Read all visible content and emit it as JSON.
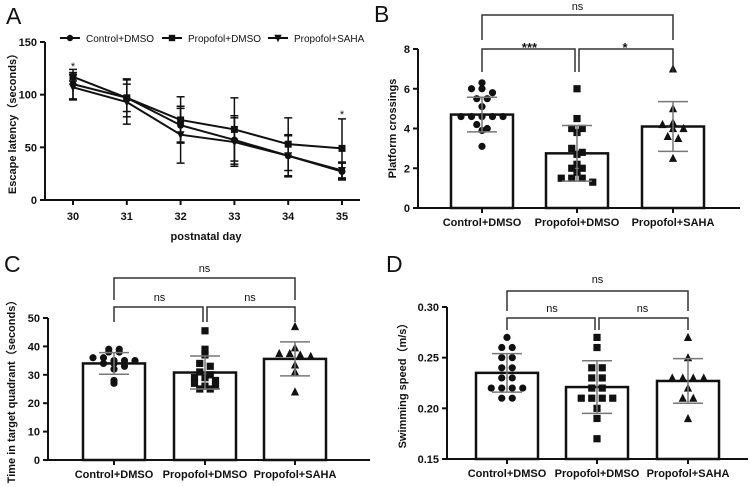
{
  "chart_data": [
    {
      "panel": "A",
      "type": "line",
      "xlabel": "postnatal day",
      "ylabel": "Escape latency（seconds）",
      "x": [
        30,
        31,
        32,
        33,
        34,
        35
      ],
      "xticks": [
        "30",
        "31",
        "32",
        "33",
        "34",
        "35"
      ],
      "ylim": [
        0,
        150
      ],
      "yticks": [
        "0",
        "50",
        "100",
        "150"
      ],
      "legend_position": "top",
      "series": [
        {
          "name": "Control+DMSO",
          "marker": "circle",
          "values": [
            110,
            97,
            71,
            57,
            42,
            27
          ],
          "errors": [
            14,
            18,
            16,
            23,
            19,
            8
          ]
        },
        {
          "name": "Propofol+DMSO",
          "marker": "square",
          "values": [
            117,
            97,
            76,
            67,
            53,
            49
          ],
          "errors": [
            4,
            13,
            22,
            30,
            25,
            28
          ]
        },
        {
          "name": "Propofol+SAHA",
          "marker": "triangle-down",
          "values": [
            107,
            93,
            62,
            55,
            42,
            28
          ],
          "errors": [
            12,
            21,
            27,
            23,
            20,
            8
          ]
        }
      ],
      "annotations": [
        {
          "x": 30,
          "text": "*"
        },
        {
          "x": 35,
          "text": "*"
        }
      ]
    },
    {
      "panel": "B",
      "type": "bar",
      "ylabel": "Platform crossings",
      "categories": [
        "Control+DMSO",
        "Propofol+DMSO",
        "Propofol+SAHA"
      ],
      "ylim": [
        0,
        8
      ],
      "yticks": [
        "0",
        "2",
        "4",
        "6",
        "8"
      ],
      "values": [
        4.7,
        2.75,
        4.1
      ],
      "errors": [
        0.87,
        1.4,
        1.25
      ],
      "markers": [
        "circle",
        "square",
        "triangle"
      ],
      "points": [
        [
          6.3,
          6.0,
          6.0,
          5.8,
          5.5,
          5.5,
          5.1,
          4.6,
          4.6,
          4.6,
          4.6,
          4.6,
          4.2,
          4.0,
          3.9,
          3.1
        ],
        [
          6.0,
          4.5,
          4.0,
          4.0,
          3.8,
          3.0,
          2.8,
          2.7,
          2.2,
          2.0,
          2.0,
          1.8,
          1.5,
          1.5,
          1.5,
          1.3
        ],
        [
          7.0,
          5.0,
          4.3,
          4.2,
          4.0,
          4.0,
          3.6,
          3.5,
          2.5
        ]
      ],
      "comparisons": [
        {
          "groups": [
            0,
            2
          ],
          "label": "ns"
        },
        {
          "groups": [
            0,
            1
          ],
          "label": "***"
        },
        {
          "groups": [
            1,
            2
          ],
          "label": "*"
        }
      ]
    },
    {
      "panel": "C",
      "type": "bar",
      "ylabel": "Time in target quadrant（seconds）",
      "categories": [
        "Control+DMSO",
        "Propofol+DMSO",
        "Propofol+SAHA"
      ],
      "ylim": [
        0,
        50
      ],
      "yticks": [
        "0",
        "10",
        "20",
        "30",
        "40",
        "50"
      ],
      "values": [
        34,
        30.8,
        35.6
      ],
      "errors": [
        3.8,
        5.8,
        6
      ],
      "markers": [
        "circle",
        "square",
        "triangle"
      ],
      "points": [
        [
          39,
          39,
          38,
          38,
          36,
          36,
          35,
          35,
          35,
          34,
          34,
          33,
          32,
          28,
          27
        ],
        [
          45.5,
          39,
          37,
          34,
          33,
          31,
          30,
          29,
          29,
          28,
          27,
          26,
          26,
          25,
          25
        ],
        [
          47,
          39.5,
          37.5,
          37.5,
          37,
          36.5,
          33.5,
          31,
          24
        ]
      ],
      "comparisons": [
        {
          "groups": [
            0,
            2
          ],
          "label": "ns"
        },
        {
          "groups": [
            0,
            1
          ],
          "label": "ns"
        },
        {
          "groups": [
            1,
            2
          ],
          "label": "ns"
        }
      ]
    },
    {
      "panel": "D",
      "type": "bar",
      "ylabel": "Swimming speed（m/s）",
      "categories": [
        "Control+DMSO",
        "Propofol+DMSO",
        "Propofol+SAHA"
      ],
      "ylim": [
        0.15,
        0.3
      ],
      "yticks": [
        "0.15",
        "0.20",
        "0.25",
        "0.30"
      ],
      "values": [
        0.235,
        0.221,
        0.227
      ],
      "errors": [
        0.019,
        0.026,
        0.022
      ],
      "markers": [
        "circle",
        "square",
        "triangle"
      ],
      "points": [
        [
          0.27,
          0.26,
          0.26,
          0.25,
          0.25,
          0.24,
          0.24,
          0.23,
          0.23,
          0.22,
          0.22,
          0.22,
          0.22,
          0.21,
          0.21
        ],
        [
          0.27,
          0.26,
          0.24,
          0.24,
          0.23,
          0.23,
          0.22,
          0.22,
          0.21,
          0.21,
          0.21,
          0.21,
          0.2,
          0.19,
          0.17
        ],
        [
          0.27,
          0.25,
          0.23,
          0.23,
          0.23,
          0.23,
          0.22,
          0.21,
          0.21,
          0.19
        ]
      ],
      "comparisons": [
        {
          "groups": [
            0,
            2
          ],
          "label": "ns"
        },
        {
          "groups": [
            0,
            1
          ],
          "label": "ns"
        },
        {
          "groups": [
            1,
            2
          ],
          "label": "ns"
        }
      ]
    }
  ]
}
